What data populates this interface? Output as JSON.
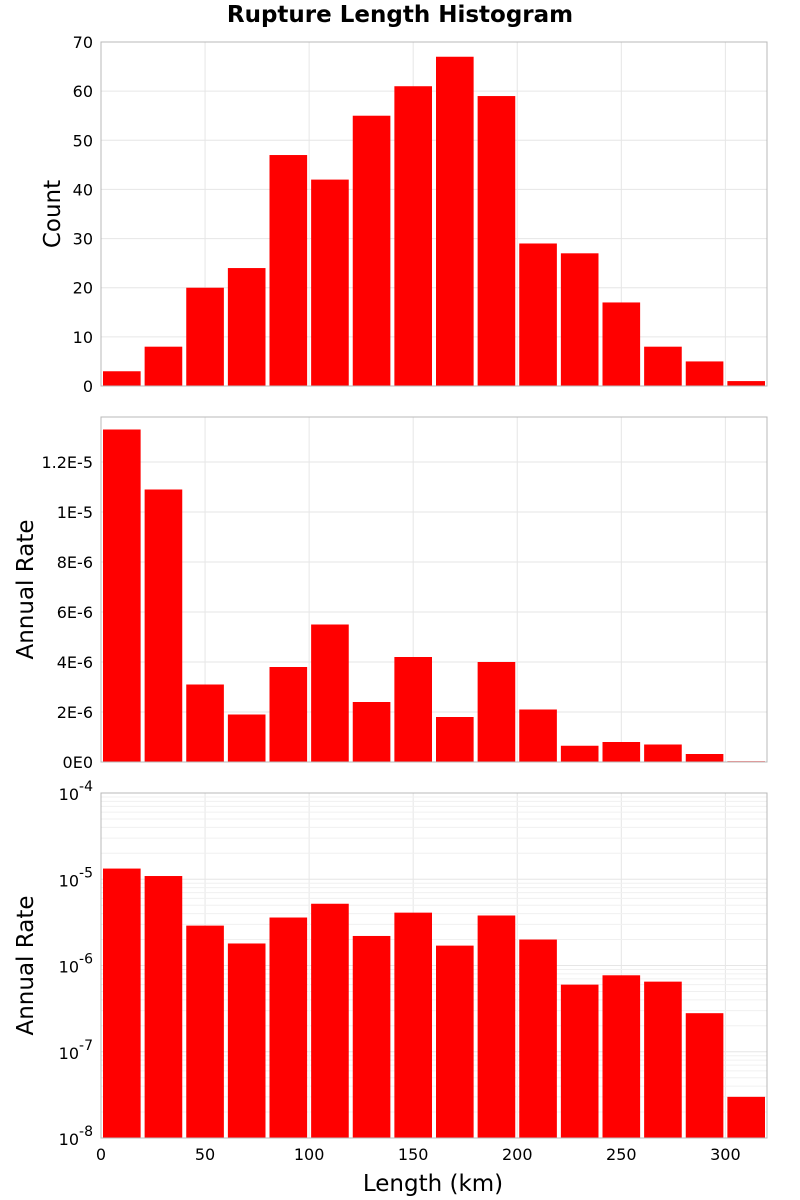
{
  "chart_data": {
    "type": "bar",
    "title": "Rupture Length Histogram",
    "colors": {
      "bar": "#ff0000"
    },
    "bin_width": 20,
    "bin_starts": [
      0,
      20,
      40,
      60,
      80,
      100,
      120,
      140,
      160,
      180,
      200,
      220,
      240,
      260,
      280,
      300
    ],
    "xlabel": "Length (km)",
    "xlim": [
      0,
      320
    ],
    "xticks": [
      "0",
      "50",
      "100",
      "150",
      "200",
      "250",
      "300"
    ],
    "xtick_values": [
      0,
      50,
      100,
      150,
      200,
      250,
      300
    ],
    "grid": true,
    "panels": [
      {
        "ylabel": "Count",
        "scale": "linear",
        "ylim": [
          0,
          70
        ],
        "ytick_values": [
          0,
          10,
          20,
          30,
          40,
          50,
          60,
          70
        ],
        "yticks": [
          "0",
          "10",
          "20",
          "30",
          "40",
          "50",
          "60",
          "70"
        ],
        "values": [
          3,
          8,
          20,
          24,
          47,
          42,
          55,
          61,
          67,
          59,
          29,
          27,
          17,
          8,
          5,
          1
        ]
      },
      {
        "ylabel": "Annual Rate",
        "scale": "linear",
        "ylim": [
          0,
          1.38e-05
        ],
        "ytick_values": [
          0,
          2e-06,
          4e-06,
          6e-06,
          8e-06,
          1e-05,
          1.2e-05
        ],
        "yticks": [
          "0E0",
          "2E-6",
          "4E-6",
          "6E-6",
          "8E-6",
          "1E-5",
          "1.2E-5"
        ],
        "values": [
          1.33e-05,
          1.09e-05,
          3.1e-06,
          1.9e-06,
          3.8e-06,
          5.5e-06,
          2.4e-06,
          4.2e-06,
          1.8e-06,
          4e-06,
          2.1e-06,
          6.5e-07,
          8e-07,
          7e-07,
          3.2e-07,
          3e-08
        ]
      },
      {
        "ylabel": "Annual Rate",
        "scale": "log",
        "ylim": [
          1e-08,
          0.0001
        ],
        "ytick_exponents": [
          -8,
          -7,
          -6,
          -5,
          -4
        ],
        "ytick_base": "10",
        "yticks_exp": [
          "-8",
          "-7",
          "-6",
          "-5",
          "-4"
        ],
        "values": [
          1.33e-05,
          1.09e-05,
          2.9e-06,
          1.8e-06,
          3.6e-06,
          5.2e-06,
          2.2e-06,
          4.1e-06,
          1.7e-06,
          3.8e-06,
          2e-06,
          6e-07,
          7.7e-07,
          6.5e-07,
          2.8e-07,
          3e-08
        ]
      }
    ]
  }
}
